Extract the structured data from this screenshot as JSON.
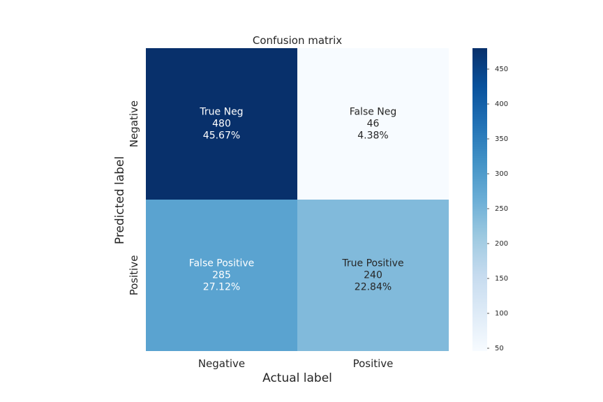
{
  "chart_data": {
    "type": "heatmap",
    "title": "Confusion matrix",
    "xlabel": "Actual label",
    "ylabel": "Predicted label",
    "x_categories": [
      "Negative",
      "Positive"
    ],
    "y_categories": [
      "Negative",
      "Positive"
    ],
    "cells": [
      {
        "row": 0,
        "col": 0,
        "name": "True Neg",
        "count": "480",
        "percent": "45.67%",
        "value": 480
      },
      {
        "row": 0,
        "col": 1,
        "name": "False Neg",
        "count": "46",
        "percent": "4.38%",
        "value": 46
      },
      {
        "row": 1,
        "col": 0,
        "name": "False Positive",
        "count": "285",
        "percent": "27.12%",
        "value": 285
      },
      {
        "row": 1,
        "col": 1,
        "name": "True Positive",
        "count": "240",
        "percent": "22.84%",
        "value": 240
      }
    ],
    "colorbar": {
      "vmin": 46,
      "vmax": 480,
      "ticks": [
        50,
        100,
        150,
        200,
        250,
        300,
        350,
        400,
        450
      ],
      "colormap": "Blues"
    }
  }
}
